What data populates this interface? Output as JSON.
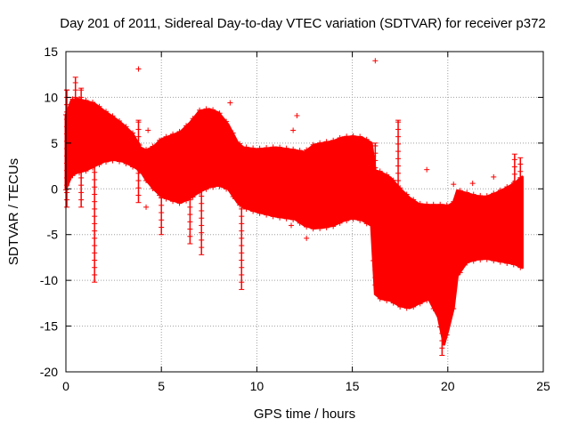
{
  "chart_data": {
    "type": "scatter",
    "title": "Day 201 of 2011, Sidereal Day-to-day VTEC variation (SDTVAR) for receiver p372",
    "xlabel": "GPS time / hours",
    "ylabel": "SDTVAR / TECUs",
    "xlim": [
      0,
      25
    ],
    "ylim": [
      -20,
      15
    ],
    "xticks": [
      0,
      5,
      10,
      15,
      20,
      25
    ],
    "yticks": [
      -20,
      -15,
      -10,
      -5,
      0,
      5,
      10,
      15
    ],
    "grid": true,
    "marker": "+",
    "series": [
      {
        "name": "SDTVAR",
        "color": "#ff0000",
        "band": {
          "x": [
            0.0,
            0.3,
            0.6,
            1.0,
            1.5,
            2.0,
            2.5,
            3.0,
            3.5,
            3.9,
            4.2,
            4.6,
            5.0,
            5.5,
            6.0,
            6.5,
            7.0,
            7.5,
            8.0,
            8.5,
            9.0,
            9.3,
            10.0,
            11.0,
            12.0,
            12.5,
            13.0,
            13.5,
            14.0,
            14.5,
            15.0,
            15.5,
            16.0,
            16.2,
            16.5,
            17.0,
            17.5,
            18.0,
            18.5,
            19.0,
            19.5,
            19.8,
            20.0,
            20.3,
            20.5,
            21.0,
            21.5,
            22.0,
            22.5,
            23.0,
            23.5,
            23.9
          ],
          "upper": [
            8.0,
            9.7,
            9.8,
            9.6,
            9.3,
            8.5,
            7.8,
            7.0,
            6.0,
            4.5,
            4.2,
            4.6,
            5.4,
            5.8,
            6.2,
            7.2,
            8.5,
            8.7,
            8.3,
            7.0,
            5.0,
            4.5,
            4.3,
            4.5,
            4.2,
            4.0,
            4.8,
            5.0,
            5.2,
            5.6,
            5.7,
            5.6,
            5.0,
            2.0,
            1.8,
            1.2,
            0.0,
            -1.0,
            -1.7,
            -1.8,
            -1.8,
            -1.8,
            -1.9,
            -1.5,
            -0.2,
            -0.5,
            -0.8,
            -0.9,
            -0.5,
            0.0,
            0.6,
            1.3
          ],
          "lower": [
            0.0,
            1.5,
            1.8,
            2.0,
            2.5,
            3.0,
            3.2,
            3.0,
            2.5,
            2.0,
            1.0,
            0.0,
            -0.8,
            -1.2,
            -1.5,
            -1.0,
            -0.3,
            0.2,
            0.4,
            0.0,
            -1.5,
            -2.0,
            -2.5,
            -3.0,
            -3.3,
            -4.0,
            -4.3,
            -4.2,
            -4.0,
            -3.5,
            -3.2,
            -3.4,
            -4.0,
            -11.5,
            -12.0,
            -12.2,
            -12.8,
            -13.0,
            -12.5,
            -12.0,
            -14.0,
            -17.0,
            -15.5,
            -13.0,
            -9.5,
            -8.0,
            -7.7,
            -7.6,
            -7.8,
            -8.0,
            -8.2,
            -8.6
          ]
        },
        "spikes": [
          {
            "x": 0.05,
            "lo": -2.0,
            "hi": 10.8
          },
          {
            "x": 0.5,
            "lo": 2.0,
            "hi": 12.2
          },
          {
            "x": 0.8,
            "lo": -2.0,
            "hi": 11.0
          },
          {
            "x": 1.5,
            "lo": -10.2,
            "hi": 3.0
          },
          {
            "x": 3.8,
            "lo": -1.5,
            "hi": 7.5
          },
          {
            "x": 5.0,
            "lo": -5.0,
            "hi": 0.0
          },
          {
            "x": 6.5,
            "lo": -6.0,
            "hi": 0.5
          },
          {
            "x": 7.1,
            "lo": -7.2,
            "hi": 0.8
          },
          {
            "x": 9.2,
            "lo": -11.0,
            "hi": 0.0
          },
          {
            "x": 16.2,
            "lo": -10.5,
            "hi": 5.0
          },
          {
            "x": 17.4,
            "lo": -1.5,
            "hi": 7.5
          },
          {
            "x": 19.7,
            "lo": -18.2,
            "hi": -13.0
          },
          {
            "x": 23.5,
            "lo": -8.0,
            "hi": 3.8
          },
          {
            "x": 23.8,
            "lo": -8.5,
            "hi": 3.4
          }
        ],
        "outliers": [
          {
            "x": 3.8,
            "y": 13.1
          },
          {
            "x": 16.2,
            "y": 14.0
          },
          {
            "x": 12.1,
            "y": 8.0
          },
          {
            "x": 11.9,
            "y": 6.4
          },
          {
            "x": 8.6,
            "y": 9.4
          },
          {
            "x": 18.9,
            "y": 2.1
          },
          {
            "x": 22.4,
            "y": 1.3
          },
          {
            "x": 21.3,
            "y": 0.6
          },
          {
            "x": 11.8,
            "y": -4.0
          },
          {
            "x": 12.6,
            "y": -5.4
          },
          {
            "x": 8.0,
            "y": 0.5
          },
          {
            "x": 4.3,
            "y": 6.4
          },
          {
            "x": 4.2,
            "y": -2.0
          },
          {
            "x": 20.3,
            "y": 0.5
          }
        ]
      }
    ]
  }
}
